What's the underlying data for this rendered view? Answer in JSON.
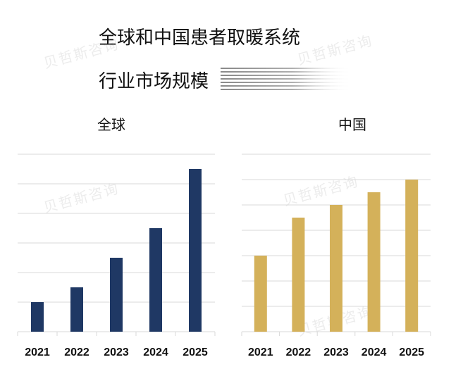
{
  "title": {
    "line1": "全球和中国患者取暖系统",
    "line2": "行业市场规模"
  },
  "watermark": "贝哲斯咨询",
  "colors": {
    "global_bar": "#1f3864",
    "china_bar": "#d4b15a",
    "grid": "#d9d9d9",
    "text": "#111111"
  },
  "chart_data": [
    {
      "type": "bar",
      "title": "全球",
      "categories": [
        "2021",
        "2022",
        "2023",
        "2024",
        "2025"
      ],
      "series": [
        {
          "values": [
            1.0,
            1.5,
            2.5,
            3.5,
            5.5
          ]
        }
      ],
      "ylim": [
        0,
        6
      ],
      "yticks": [
        0,
        1,
        2,
        3,
        4,
        5,
        6
      ],
      "ytick_labels_shown": false,
      "grid": true,
      "color": "#1f3864"
    },
    {
      "type": "bar",
      "title": "中国",
      "categories": [
        "2021",
        "2022",
        "2023",
        "2024",
        "2025"
      ],
      "series": [
        {
          "values": [
            3.0,
            4.5,
            5.0,
            5.5,
            6.0
          ]
        }
      ],
      "ylim": [
        0,
        7
      ],
      "yticks": [
        0,
        1,
        2,
        3,
        4,
        5,
        6,
        7
      ],
      "ytick_labels_shown": false,
      "grid": true,
      "color": "#d4b15a"
    }
  ]
}
